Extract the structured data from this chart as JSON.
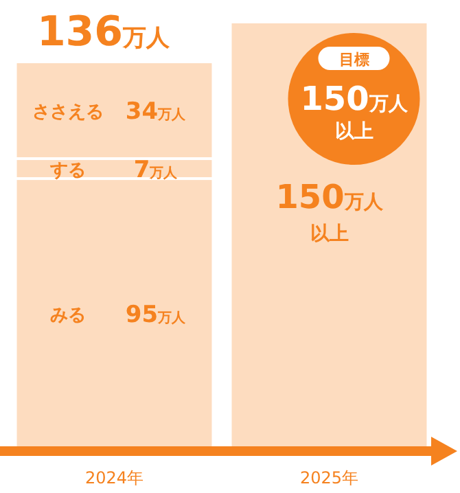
{
  "chart_data": {
    "type": "bar",
    "stacked": true,
    "categories": [
      "2024年",
      "2025年"
    ],
    "series": [
      {
        "name": "みる",
        "color": "#fddcbf",
        "values": [
          95,
          null
        ],
        "value_labels": [
          "95万人",
          null
        ]
      },
      {
        "name": "する",
        "color": "#fddcbf",
        "values": [
          7,
          null
        ],
        "value_labels": [
          "7万人",
          null
        ]
      },
      {
        "name": "ささえる",
        "color": "#fddcbf",
        "values": [
          34,
          null
        ],
        "value_labels": [
          "34万人",
          null
        ]
      },
      {
        "color": "#fddcbf",
        "values": [
          null,
          150
        ],
        "value_labels": [
          null,
          "150万人以上"
        ]
      }
    ],
    "totals": [
      "136万人",
      null
    ],
    "annotations": [
      "目標",
      "150万人以上"
    ]
  }
}
